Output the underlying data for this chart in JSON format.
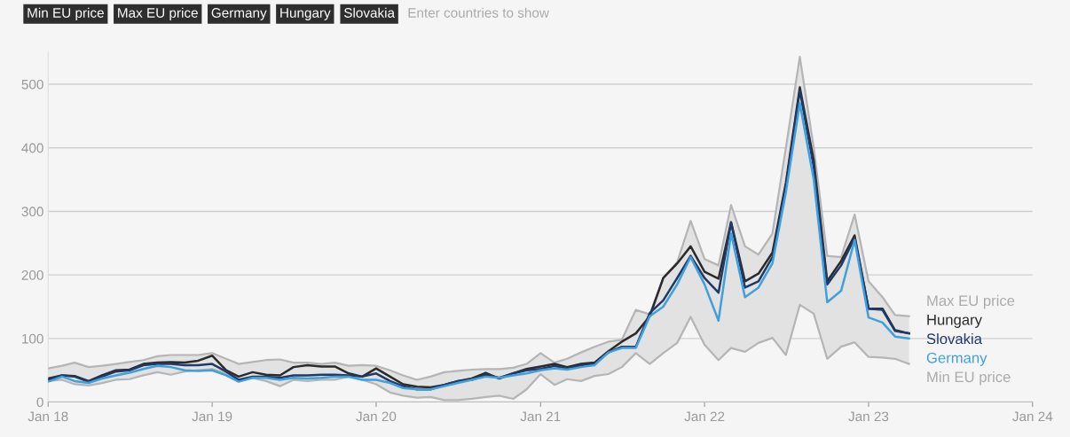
{
  "chart_data": {
    "type": "line",
    "annotations": [
      "Min EU price",
      "Max EU price",
      "Germany",
      "Hungary",
      "Slovakia",
      "Enter countries to show"
    ],
    "x": [
      "2018-01",
      "2018-02",
      "2018-03",
      "2018-04",
      "2018-05",
      "2018-06",
      "2018-07",
      "2018-08",
      "2018-09",
      "2018-10",
      "2018-11",
      "2018-12",
      "2019-01",
      "2019-02",
      "2019-03",
      "2019-04",
      "2019-05",
      "2019-06",
      "2019-07",
      "2019-08",
      "2019-09",
      "2019-10",
      "2019-11",
      "2019-12",
      "2020-01",
      "2020-02",
      "2020-03",
      "2020-04",
      "2020-05",
      "2020-06",
      "2020-07",
      "2020-08",
      "2020-09",
      "2020-10",
      "2020-11",
      "2020-12",
      "2021-01",
      "2021-02",
      "2021-03",
      "2021-04",
      "2021-05",
      "2021-06",
      "2021-07",
      "2021-08",
      "2021-09",
      "2021-10",
      "2021-11",
      "2021-12",
      "2022-01",
      "2022-02",
      "2022-03",
      "2022-04",
      "2022-05",
      "2022-06",
      "2022-07",
      "2022-08",
      "2022-09",
      "2022-10",
      "2022-11",
      "2022-12",
      "2023-01",
      "2023-02",
      "2023-03",
      "2023-04"
    ],
    "series": [
      {
        "name": "Min EU price",
        "color": "#b5b5b5",
        "values": [
          33,
          35,
          28,
          26,
          30,
          35,
          36,
          42,
          47,
          43,
          48,
          50,
          52,
          45,
          35,
          38,
          33,
          25,
          35,
          33,
          35,
          35,
          40,
          35,
          28,
          15,
          10,
          7,
          8,
          3,
          3,
          5,
          8,
          10,
          5,
          20,
          44,
          27,
          36,
          33,
          41,
          44,
          55,
          77,
          60,
          77,
          93,
          134,
          90,
          66,
          85,
          79,
          93,
          101,
          74,
          153,
          139,
          68,
          87,
          94,
          71,
          70,
          68,
          60
        ]
      },
      {
        "name": "Max EU price",
        "type": "area",
        "color": "#b5b5b5",
        "values": [
          53,
          57,
          62,
          55,
          57,
          60,
          63,
          66,
          72,
          74,
          74,
          74,
          77,
          68,
          60,
          63,
          66,
          67,
          62,
          62,
          60,
          62,
          57,
          58,
          57,
          50,
          42,
          35,
          40,
          47,
          49,
          51,
          52,
          52,
          54,
          60,
          77,
          62,
          68,
          78,
          87,
          95,
          98,
          145,
          138,
          195,
          220,
          285,
          225,
          215,
          310,
          245,
          232,
          265,
          400,
          543,
          400,
          230,
          228,
          295,
          190,
          165,
          137,
          135
        ]
      },
      {
        "name": "Hungary",
        "color": "#2b2b2b",
        "values": [
          37,
          42,
          41,
          33,
          42,
          50,
          51,
          60,
          62,
          63,
          62,
          65,
          73,
          50,
          40,
          47,
          43,
          42,
          55,
          58,
          56,
          56,
          45,
          40,
          53,
          40,
          28,
          24,
          23,
          27,
          33,
          37,
          46,
          37,
          45,
          52,
          56,
          60,
          55,
          60,
          62,
          80,
          95,
          108,
          135,
          195,
          218,
          245,
          205,
          194,
          283,
          190,
          202,
          235,
          345,
          495,
          380,
          190,
          222,
          262,
          147,
          147,
          113,
          108
        ]
      },
      {
        "name": "Slovakia",
        "color": "#1f3a68",
        "values": [
          35,
          42,
          40,
          32,
          40,
          48,
          50,
          58,
          60,
          60,
          58,
          58,
          60,
          48,
          35,
          40,
          40,
          38,
          42,
          42,
          43,
          43,
          42,
          40,
          45,
          33,
          25,
          20,
          20,
          27,
          33,
          35,
          43,
          38,
          45,
          50,
          52,
          57,
          52,
          58,
          60,
          78,
          87,
          87,
          140,
          160,
          195,
          230,
          195,
          172,
          282,
          180,
          190,
          228,
          340,
          490,
          370,
          185,
          215,
          258,
          147,
          145,
          112,
          108
        ]
      },
      {
        "name": "Germany",
        "color": "#3fa0dc",
        "values": [
          32,
          40,
          33,
          30,
          37,
          42,
          46,
          52,
          57,
          55,
          50,
          49,
          50,
          42,
          32,
          38,
          38,
          35,
          38,
          37,
          38,
          40,
          40,
          35,
          35,
          30,
          22,
          20,
          20,
          25,
          30,
          35,
          40,
          38,
          42,
          45,
          50,
          53,
          51,
          55,
          58,
          78,
          85,
          85,
          135,
          150,
          185,
          228,
          185,
          128,
          265,
          165,
          180,
          218,
          330,
          470,
          350,
          157,
          175,
          255,
          133,
          125,
          103,
          100
        ]
      }
    ],
    "xlim": [
      "2018-01",
      "2024-01"
    ],
    "xticks": [
      {
        "value": "2018-01",
        "label": "Jan 18"
      },
      {
        "value": "2019-01",
        "label": "Jan 19"
      },
      {
        "value": "2020-01",
        "label": "Jan 20"
      },
      {
        "value": "2021-01",
        "label": "Jan 21"
      },
      {
        "value": "2022-01",
        "label": "Jan 22"
      },
      {
        "value": "2023-01",
        "label": "Jan 23"
      },
      {
        "value": "2024-01",
        "label": "Jan 24"
      }
    ],
    "ylim": [
      0,
      550
    ],
    "yticks": [
      0,
      100,
      200,
      300,
      400,
      500
    ],
    "grid": "y",
    "legend": false,
    "marker": "none",
    "line_style": "solid"
  }
}
